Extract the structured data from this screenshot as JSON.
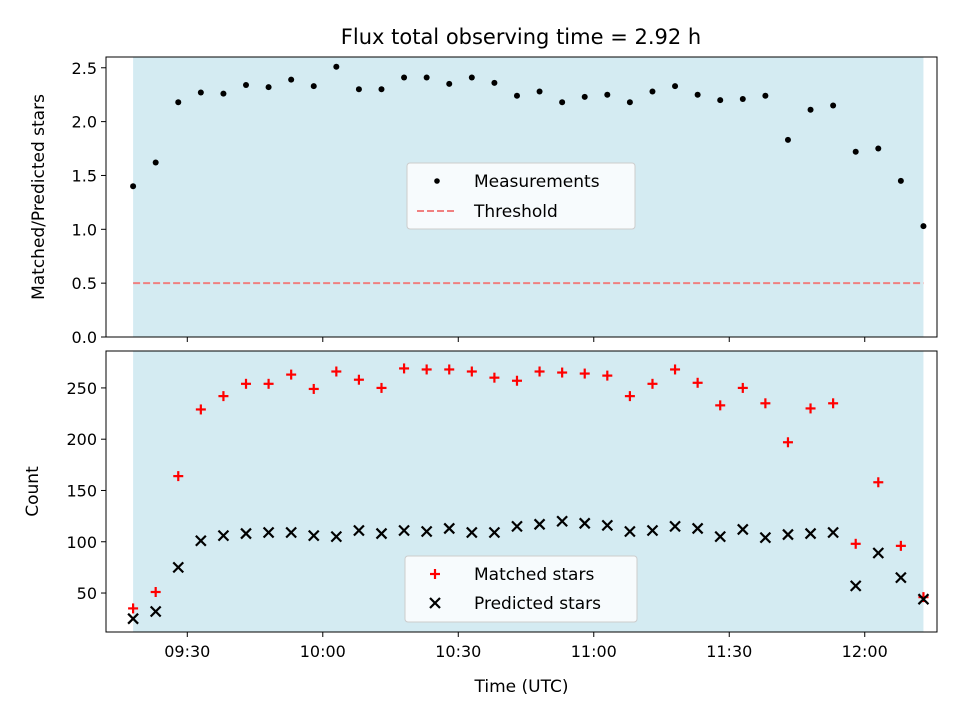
{
  "chart_data": [
    {
      "type": "scatter",
      "title": "Flux total observing time = 2.92 h",
      "ylabel": "Matched/Predicted stars",
      "xlabel": "",
      "xlim": [
        "09:12",
        "12:16"
      ],
      "ylim": [
        0,
        2.6
      ],
      "yticks": [
        "0.0",
        "0.5",
        "1.0",
        "1.5",
        "2.0",
        "2.5"
      ],
      "shaded_span": [
        "09:18",
        "12:13"
      ],
      "shade_color": "#add8e6",
      "legend_position": "center",
      "legend": [
        "Measurements",
        "Threshold"
      ],
      "threshold": {
        "name": "Threshold",
        "value": 0.5,
        "color": "#f08080",
        "style": "dashed"
      },
      "series": [
        {
          "name": "Measurements",
          "color": "#000000",
          "marker": "dot",
          "x": [
            "09:18",
            "09:23",
            "09:28",
            "09:33",
            "09:38",
            "09:43",
            "09:48",
            "09:53",
            "09:58",
            "10:03",
            "10:08",
            "10:13",
            "10:18",
            "10:23",
            "10:28",
            "10:33",
            "10:38",
            "10:43",
            "10:48",
            "10:53",
            "10:58",
            "11:03",
            "11:08",
            "11:13",
            "11:18",
            "11:23",
            "11:28",
            "11:33",
            "11:38",
            "11:43",
            "11:48",
            "11:53",
            "11:58",
            "12:03",
            "12:08",
            "12:13"
          ],
          "values": [
            1.4,
            1.62,
            2.18,
            2.27,
            2.26,
            2.34,
            2.32,
            2.39,
            2.33,
            2.51,
            2.3,
            2.3,
            2.41,
            2.41,
            2.35,
            2.41,
            2.36,
            2.24,
            2.28,
            2.18,
            2.23,
            2.25,
            2.18,
            2.28,
            2.33,
            2.25,
            2.2,
            2.21,
            2.24,
            1.83,
            2.11,
            2.15,
            1.72,
            1.75,
            1.45,
            1.03
          ]
        }
      ]
    },
    {
      "type": "scatter",
      "title": "",
      "ylabel": "Count",
      "xlabel": "Time (UTC)",
      "xlim": [
        "09:12",
        "12:16"
      ],
      "ylim": [
        12,
        286
      ],
      "yticks": [
        "50",
        "100",
        "150",
        "200",
        "250"
      ],
      "xticks": [
        "09:30",
        "10:00",
        "10:30",
        "11:00",
        "11:30",
        "12:00"
      ],
      "shaded_span": [
        "09:18",
        "12:13"
      ],
      "shade_color": "#add8e6",
      "legend_position": "lower center",
      "legend": [
        "Matched stars",
        "Predicted stars"
      ],
      "series": [
        {
          "name": "Matched stars",
          "color": "#ff0000",
          "marker": "plus",
          "x": [
            "09:18",
            "09:23",
            "09:28",
            "09:33",
            "09:38",
            "09:43",
            "09:48",
            "09:53",
            "09:58",
            "10:03",
            "10:08",
            "10:13",
            "10:18",
            "10:23",
            "10:28",
            "10:33",
            "10:38",
            "10:43",
            "10:48",
            "10:53",
            "10:58",
            "11:03",
            "11:08",
            "11:13",
            "11:18",
            "11:23",
            "11:28",
            "11:33",
            "11:38",
            "11:43",
            "11:48",
            "11:53",
            "11:58",
            "12:03",
            "12:08",
            "12:13"
          ],
          "values": [
            35,
            51,
            164,
            229,
            242,
            254,
            254,
            263,
            249,
            266,
            258,
            250,
            269,
            268,
            268,
            266,
            260,
            257,
            266,
            265,
            264,
            262,
            242,
            254,
            268,
            255,
            233,
            250,
            235,
            197,
            230,
            235,
            98,
            158,
            96,
            46
          ]
        },
        {
          "name": "Predicted stars",
          "color": "#000000",
          "marker": "x",
          "x": [
            "09:18",
            "09:23",
            "09:28",
            "09:33",
            "09:38",
            "09:43",
            "09:48",
            "09:53",
            "09:58",
            "10:03",
            "10:08",
            "10:13",
            "10:18",
            "10:23",
            "10:28",
            "10:33",
            "10:38",
            "10:43",
            "10:48",
            "10:53",
            "10:58",
            "11:03",
            "11:08",
            "11:13",
            "11:18",
            "11:23",
            "11:28",
            "11:33",
            "11:38",
            "11:43",
            "11:48",
            "11:53",
            "11:58",
            "12:03",
            "12:08",
            "12:13"
          ],
          "values": [
            25,
            32,
            75,
            101,
            106,
            108,
            109,
            109,
            106,
            105,
            111,
            108,
            111,
            110,
            113,
            109,
            109,
            115,
            117,
            120,
            118,
            116,
            110,
            111,
            115,
            113,
            105,
            112,
            104,
            107,
            108,
            109,
            57,
            89,
            65,
            44
          ]
        }
      ]
    }
  ]
}
